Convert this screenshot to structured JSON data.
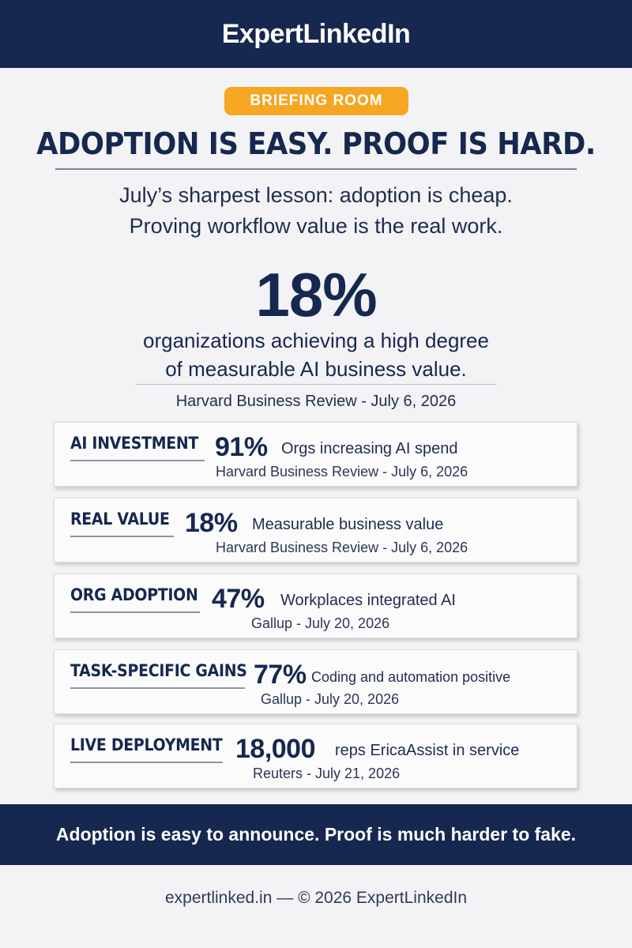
{
  "header": {
    "brand": "ExpertLinkedIn"
  },
  "badge": {
    "label": "BRIEFING ROOM"
  },
  "headline": "ADOPTION IS EASY. PROOF IS HARD.",
  "subheadline": {
    "line1": "July’s sharpest lesson: adoption is cheap.",
    "line2": "Proving workflow value is the real work."
  },
  "hero_stat": {
    "value": "18%",
    "description_line1": "organizations achieving a high degree",
    "description_line2": "of measurable AI business value.",
    "source": "Harvard Business Review - July 6, 2026"
  },
  "cards": [
    {
      "label": "AI INVESTMENT",
      "value": "91%",
      "text": "Orgs increasing AI spend",
      "source": "Harvard Business Review - July 6, 2026"
    },
    {
      "label": "REAL VALUE",
      "value": "18%",
      "text": "Measurable business value",
      "source": "Harvard Business Review - July 6, 2026"
    },
    {
      "label": "ORG ADOPTION",
      "value": "47%",
      "text": "Workplaces integrated AI",
      "source": "Gallup - July 20, 2026"
    },
    {
      "label": "TASK-SPECIFIC GAINS",
      "value": "77%",
      "text": "Coding and automation positive",
      "source": "Gallup - July 20, 2026"
    },
    {
      "label": "LIVE DEPLOYMENT",
      "value": "18,000",
      "text": "reps  EricaAssist in service",
      "source": "Reuters - July 21, 2026"
    }
  ],
  "footer": {
    "tagline": "Adoption is easy to announce. Proof is much harder to fake.",
    "credit": "expertlinked.in — © 2026 ExpertLinkedIn"
  },
  "colors": {
    "navy": "#16284f",
    "badge_orange": "#f6a623",
    "background": "#f3f3f5"
  }
}
